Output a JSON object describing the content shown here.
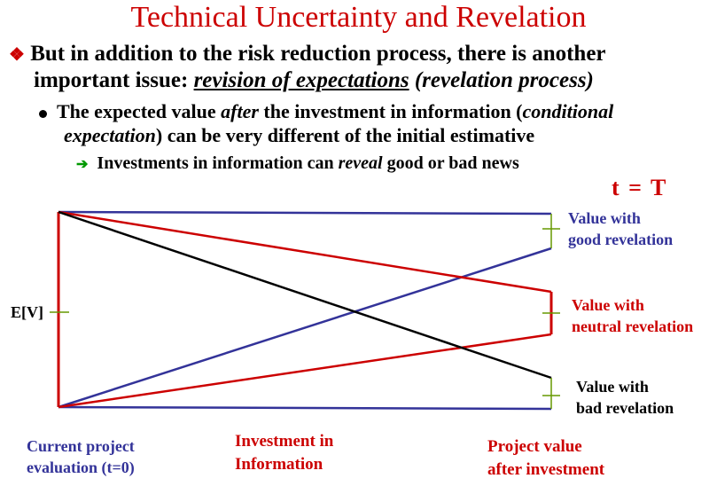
{
  "title": "Technical Uncertainty and Revelation",
  "bullet1": {
    "line1": "But in addition to the risk reduction process, there is another",
    "line2_start": "important issue: ",
    "line2_underlined": "revision of expectations",
    "line2_end": " (revelation process)"
  },
  "bullet2": {
    "line1_a": "The expected value ",
    "line1_b": "after",
    "line1_c": " the investment in information (",
    "line1_d": "conditional",
    "line2_a": "expectation",
    "line2_b": ") can be very different of the initial estimative"
  },
  "bullet3": {
    "text_a": "Investments in information can ",
    "text_b": "reveal",
    "text_c": " good or bad news"
  },
  "time_label": "t = T",
  "ev_label": "E[V]",
  "outcomes": {
    "good_1": "Value with",
    "good_2": "good revelation",
    "neutral_1": "Value with",
    "neutral_2": "neutral revelation",
    "bad_1": "Value with",
    "bad_2": "bad revelation"
  },
  "footer": {
    "current_1": "Current project",
    "current_2": "evaluation (t=0)",
    "invest_1": "Investment in",
    "invest_2": "Information",
    "project_1": "Project value",
    "project_2": "after investment"
  },
  "colors": {
    "red": "#cc0000",
    "blue": "#333399",
    "black": "#000000",
    "green_tick": "#669900"
  }
}
